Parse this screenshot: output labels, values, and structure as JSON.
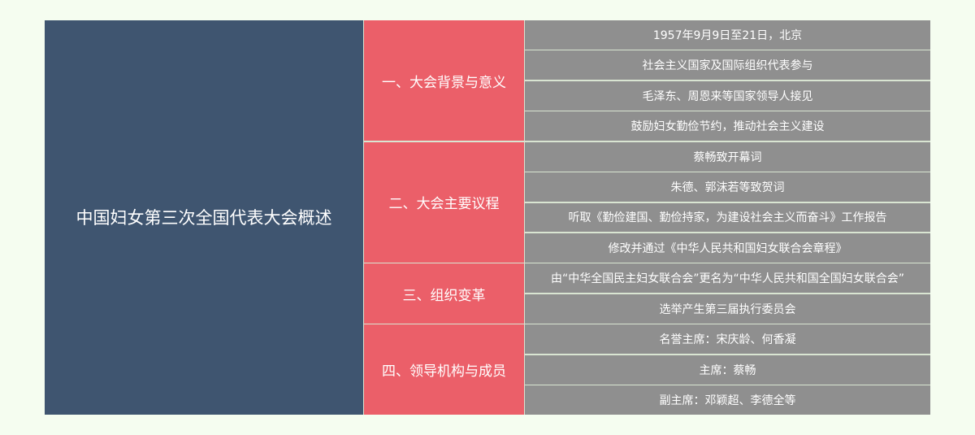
{
  "colors": {
    "root": "#3f5570",
    "branch": "#eb5f69",
    "leaf": "#8f8f8f",
    "background": "#f5fdf0"
  },
  "root": "中国妇女第三次全国代表大会概述",
  "branches": [
    {
      "label": "一、大会背景与意义",
      "items": [
        "1957年9月9日至21日，北京",
        "社会主义国家及国际组织代表参与",
        "毛泽东、周恩来等国家领导人接见",
        "鼓励妇女勤俭节约，推动社会主义建设"
      ]
    },
    {
      "label": "二、大会主要议程",
      "items": [
        "蔡畅致开幕词",
        "朱德、郭沫若等致贺词",
        "听取《勤俭建国、勤俭持家，为建设社会主义而奋斗》工作报告",
        "修改并通过《中华人民共和国妇女联合会章程》"
      ]
    },
    {
      "label": "三、组织变革",
      "items": [
        "由“中华全国民主妇女联合会”更名为“中华人民共和国全国妇女联合会”",
        "选举产生第三届执行委员会"
      ]
    },
    {
      "label": "四、领导机构与成员",
      "items": [
        "名誉主席：宋庆龄、何香凝",
        "主席：蔡畅",
        "副主席：邓颖超、李德全等"
      ]
    }
  ]
}
